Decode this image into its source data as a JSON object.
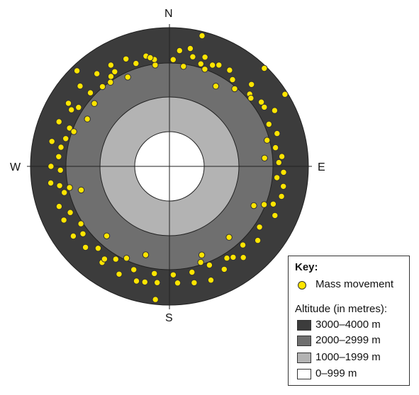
{
  "compass": {
    "n": "N",
    "s": "S",
    "e": "E",
    "w": "W"
  },
  "key": {
    "title": "Key:",
    "mass_movement": "Mass movement",
    "altitude_title": "Altitude (in metres):",
    "bands": [
      {
        "label": "3000–4000 m",
        "color": "#3c3c3c"
      },
      {
        "label": "2000–2999 m",
        "color": "#6f6f6f"
      },
      {
        "label": "1000–1999 m",
        "color": "#b3b3b3"
      },
      {
        "label": "0–999 m",
        "color": "#ffffff"
      }
    ]
  },
  "colors": {
    "marker": "#FFE500",
    "marker_stroke": "#333333",
    "axis": "#222222"
  },
  "chart_data": {
    "type": "scatter",
    "series": [
      {
        "name": "Mass movement",
        "values": [
          [
            10,
            345
          ],
          [
            12,
            323
          ],
          [
            18,
            331
          ],
          [
            26,
            325
          ],
          [
            32,
            327
          ],
          [
            45,
            334
          ],
          [
            55,
            323
          ],
          [
            58,
            322
          ],
          [
            62,
            343
          ],
          [
            73,
            324
          ],
          [
            85,
            325
          ],
          [
            93,
            329
          ],
          [
            100,
            333
          ],
          [
            105,
            334
          ],
          [
            115,
            335
          ],
          [
            130,
            332
          ],
          [
            141,
            338
          ],
          [
            152,
            336
          ],
          [
            160,
            349
          ],
          [
            168,
            343
          ],
          [
            176,
            337
          ],
          [
            186,
            337
          ],
          [
            192,
            341
          ],
          [
            196,
            344
          ],
          [
            205,
            343
          ],
          [
            215,
            338
          ],
          [
            226,
            336
          ],
          [
            234,
            342
          ],
          [
            243,
            341
          ],
          [
            250,
            338
          ],
          [
            262,
            345
          ],
          [
            270,
            341
          ],
          [
            282,
            346
          ],
          [
            292,
            343
          ],
          [
            302,
            343
          ],
          [
            312,
            346
          ],
          [
            322,
            339
          ],
          [
            330,
            337
          ],
          [
            338,
            334
          ],
          [
            348,
            325
          ],
          [
            5,
            335
          ],
          [
            17,
            309
          ],
          [
            23,
            317
          ],
          [
            36,
            309
          ],
          [
            48,
            311
          ],
          [
            67,
            311
          ],
          [
            80,
            310
          ],
          [
            88,
            315
          ],
          [
            96,
            311
          ],
          [
            110,
            318
          ],
          [
            124,
            313
          ],
          [
            137,
            310
          ],
          [
            148,
            312
          ],
          [
            158,
            307
          ],
          [
            168,
            312
          ],
          [
            178,
            313
          ],
          [
            188,
            312
          ],
          [
            199,
            315
          ],
          [
            210,
            309
          ],
          [
            221,
            313
          ],
          [
            232,
            316
          ],
          [
            245,
            315
          ],
          [
            256,
            312
          ],
          [
            268,
            314
          ],
          [
            280,
            317
          ],
          [
            291,
            308
          ],
          [
            303,
            312
          ],
          [
            313,
            311
          ],
          [
            327,
            309
          ],
          [
            342,
            312
          ],
          [
            8,
            291
          ],
          [
            40,
            292
          ],
          [
            75,
            291
          ],
          [
            112,
            294
          ],
          [
            205,
            292
          ],
          [
            258,
            294
          ],
          [
            290,
            293
          ],
          [
            325,
            296
          ],
          [
            30,
            267
          ],
          [
            85,
            275
          ],
          [
            115,
            268
          ],
          [
            140,
            267
          ],
          [
            160,
            272
          ],
          [
            195,
            264
          ],
          [
            222,
            270
          ],
          [
            255,
            263
          ],
          [
            300,
            273
          ],
          [
            310,
            282
          ],
          [
            335,
            284
          ],
          [
            352,
            295
          ],
          [
            14,
            388
          ],
          [
            44,
            393
          ],
          [
            58,
            392
          ],
          [
            186,
            386
          ],
          [
            316,
            383
          ],
          [
            352,
            311
          ],
          [
            162,
            291
          ],
          [
            275,
            320
          ],
          [
            285,
            309
          ],
          [
            300,
            326
          ],
          [
            20,
            298
          ],
          [
            50,
            306
          ],
          [
            145,
            320
          ],
          [
            215,
            326
          ],
          [
            237,
            304
          ],
          [
            260,
            321
          ],
          [
            320,
            300
          ],
          [
            330,
            315
          ],
          [
            350,
            318
          ],
          [
            2,
            308
          ]
        ]
      }
    ]
  }
}
